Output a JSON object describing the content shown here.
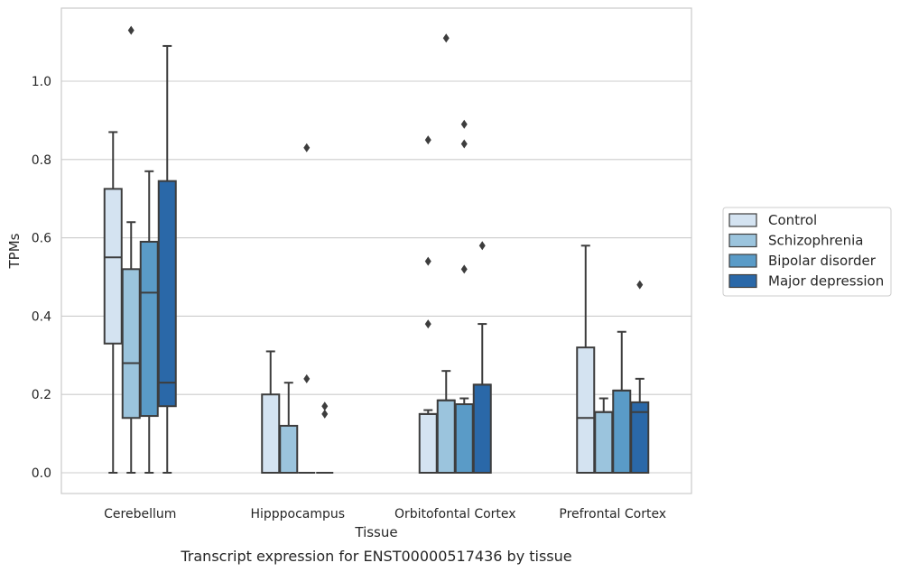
{
  "chart_data": {
    "type": "box",
    "xlabel": "Tissue",
    "ylabel": "TPMs",
    "caption": "Transcript expression for ENST00000517436 by tissue",
    "ylim": [
      -0.055,
      1.19
    ],
    "yticks": [
      "0.0",
      "0.2",
      "0.4",
      "0.6",
      "0.8",
      "1.0"
    ],
    "grid": "horizontal",
    "legend_position": "right",
    "categories": [
      "Cerebellum",
      "Hipppocampus",
      "Orbitofontal Cortex",
      "Prefrontal Cortex"
    ],
    "series": [
      {
        "name": "Control",
        "color": "#d4e3f1",
        "boxes": [
          {
            "whislo": 0.0,
            "q1": 0.33,
            "med": 0.55,
            "q3": 0.725,
            "whishi": 0.87,
            "fliers": []
          },
          {
            "whislo": 0.0,
            "q1": 0.0,
            "med": 0.0,
            "q3": 0.2,
            "whishi": 0.31,
            "fliers": []
          },
          {
            "whislo": 0.0,
            "q1": 0.0,
            "med": 0.15,
            "q3": 0.15,
            "whishi": 0.16,
            "fliers": [
              0.38,
              0.54,
              0.85
            ]
          },
          {
            "whislo": 0.0,
            "q1": 0.0,
            "med": 0.14,
            "q3": 0.32,
            "whishi": 0.58,
            "fliers": []
          }
        ]
      },
      {
        "name": "Schizophrenia",
        "color": "#9bc4dd",
        "boxes": [
          {
            "whislo": 0.0,
            "q1": 0.14,
            "med": 0.28,
            "q3": 0.52,
            "whishi": 0.64,
            "fliers": [
              1.13
            ]
          },
          {
            "whislo": 0.0,
            "q1": 0.0,
            "med": 0.0,
            "q3": 0.12,
            "whishi": 0.23,
            "fliers": []
          },
          {
            "whislo": 0.0,
            "q1": 0.0,
            "med": 0.185,
            "q3": 0.185,
            "whishi": 0.26,
            "fliers": [
              1.11
            ]
          },
          {
            "whislo": 0.0,
            "q1": 0.0,
            "med": 0.155,
            "q3": 0.155,
            "whishi": 0.19,
            "fliers": []
          }
        ]
      },
      {
        "name": "Bipolar disorder",
        "color": "#5a9bc7",
        "boxes": [
          {
            "whislo": 0.0,
            "q1": 0.145,
            "med": 0.46,
            "q3": 0.59,
            "whishi": 0.77,
            "fliers": []
          },
          {
            "whislo": 0.0,
            "q1": 0.0,
            "med": 0.0,
            "q3": 0.0,
            "whishi": 0.0,
            "fliers": [
              0.24,
              0.83
            ]
          },
          {
            "whislo": 0.0,
            "q1": 0.0,
            "med": 0.175,
            "q3": 0.175,
            "whishi": 0.19,
            "fliers": [
              0.52,
              0.84,
              0.89
            ]
          },
          {
            "whislo": 0.0,
            "q1": 0.0,
            "med": 0.21,
            "q3": 0.21,
            "whishi": 0.36,
            "fliers": []
          }
        ]
      },
      {
        "name": "Major depression",
        "color": "#2a68a8",
        "boxes": [
          {
            "whislo": 0.0,
            "q1": 0.17,
            "med": 0.23,
            "q3": 0.745,
            "whishi": 1.09,
            "fliers": []
          },
          {
            "whislo": 0.0,
            "q1": 0.0,
            "med": 0.0,
            "q3": 0.0,
            "whishi": 0.0,
            "fliers": [
              0.15,
              0.17
            ]
          },
          {
            "whislo": 0.0,
            "q1": 0.0,
            "med": 0.225,
            "q3": 0.225,
            "whishi": 0.38,
            "fliers": [
              0.58
            ]
          },
          {
            "whislo": 0.0,
            "q1": 0.0,
            "med": 0.155,
            "q3": 0.18,
            "whishi": 0.24,
            "fliers": [
              0.48
            ]
          }
        ]
      }
    ]
  }
}
